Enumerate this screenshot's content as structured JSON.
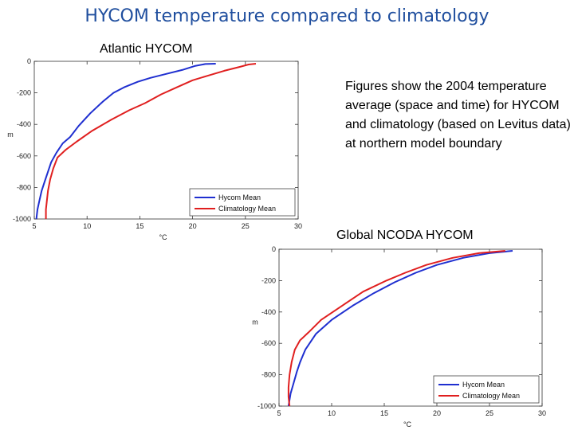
{
  "slide": {
    "title": "HYCOM temperature compared to climatology",
    "description": "Figures show the 2004 temperature average (space and time) for HYCOM and climatology (based on Levitus data) at northern model boundary"
  },
  "chart_data": [
    {
      "type": "line",
      "title": "Atlantic HYCOM",
      "xlabel": "°C",
      "ylabel": "m",
      "xlim": [
        5,
        30
      ],
      "ylim": [
        -1000,
        0
      ],
      "xticks": [
        5,
        10,
        15,
        20,
        25,
        30
      ],
      "yticks": [
        0,
        -200,
        -400,
        -600,
        -800,
        -1000
      ],
      "legend": "bottom-right",
      "grid": false,
      "series": [
        {
          "name": "Hycom Mean",
          "color": "#1f2fd0",
          "points": [
            [
              22.2,
              -15
            ],
            [
              21.2,
              -17
            ],
            [
              20.2,
              -30
            ],
            [
              19,
              -55
            ],
            [
              17.5,
              -80
            ],
            [
              16,
              -105
            ],
            [
              14.8,
              -130
            ],
            [
              13.5,
              -165
            ],
            [
              12.5,
              -200
            ],
            [
              11.5,
              -255
            ],
            [
              10.3,
              -330
            ],
            [
              9.2,
              -410
            ],
            [
              8.4,
              -480
            ],
            [
              7.7,
              -520
            ],
            [
              7.1,
              -580
            ],
            [
              6.6,
              -640
            ],
            [
              6.3,
              -700
            ],
            [
              6,
              -760
            ],
            [
              5.7,
              -820
            ],
            [
              5.5,
              -880
            ],
            [
              5.3,
              -940
            ],
            [
              5.2,
              -1000
            ]
          ]
        },
        {
          "name": "Climatology Mean",
          "color": "#e01f1f",
          "points": [
            [
              26,
              -15
            ],
            [
              25.3,
              -20
            ],
            [
              24.5,
              -35
            ],
            [
              23,
              -60
            ],
            [
              21.5,
              -90
            ],
            [
              20,
              -120
            ],
            [
              18.5,
              -165
            ],
            [
              17,
              -210
            ],
            [
              15.5,
              -265
            ],
            [
              14,
              -310
            ],
            [
              12.3,
              -370
            ],
            [
              10.5,
              -440
            ],
            [
              9,
              -510
            ],
            [
              8,
              -560
            ],
            [
              7.2,
              -610
            ],
            [
              6.8,
              -680
            ],
            [
              6.5,
              -750
            ],
            [
              6.3,
              -820
            ],
            [
              6.2,
              -880
            ],
            [
              6.1,
              -940
            ],
            [
              6.1,
              -1000
            ]
          ]
        }
      ]
    },
    {
      "type": "line",
      "title": "Global NCODA HYCOM",
      "xlabel": "°C",
      "ylabel": "m",
      "xlim": [
        5,
        30
      ],
      "ylim": [
        -1000,
        0
      ],
      "xticks": [
        5,
        10,
        15,
        20,
        25,
        30
      ],
      "yticks": [
        0,
        -200,
        -400,
        -600,
        -800,
        -1000
      ],
      "legend": "bottom-right",
      "grid": false,
      "series": [
        {
          "name": "Hycom Mean",
          "color": "#1f2fd0",
          "points": [
            [
              27.2,
              -10
            ],
            [
              25,
              -25
            ],
            [
              22.5,
              -55
            ],
            [
              20,
              -100
            ],
            [
              18,
              -150
            ],
            [
              16,
              -210
            ],
            [
              14,
              -280
            ],
            [
              12,
              -360
            ],
            [
              10,
              -450
            ],
            [
              8.5,
              -540
            ],
            [
              7.5,
              -640
            ],
            [
              7,
              -720
            ],
            [
              6.7,
              -780
            ],
            [
              6.4,
              -850
            ],
            [
              6.1,
              -920
            ],
            [
              5.9,
              -1000
            ]
          ]
        },
        {
          "name": "Climatology Mean",
          "color": "#e01f1f",
          "points": [
            [
              26.5,
              -10
            ],
            [
              24,
              -25
            ],
            [
              21.5,
              -55
            ],
            [
              19,
              -100
            ],
            [
              17,
              -150
            ],
            [
              15.2,
              -200
            ],
            [
              13,
              -270
            ],
            [
              11,
              -360
            ],
            [
              9,
              -450
            ],
            [
              7.8,
              -530
            ],
            [
              7,
              -580
            ],
            [
              6.5,
              -640
            ],
            [
              6.2,
              -720
            ],
            [
              6,
              -800
            ],
            [
              5.9,
              -880
            ],
            [
              5.9,
              -940
            ],
            [
              6,
              -1000
            ]
          ]
        }
      ]
    }
  ]
}
